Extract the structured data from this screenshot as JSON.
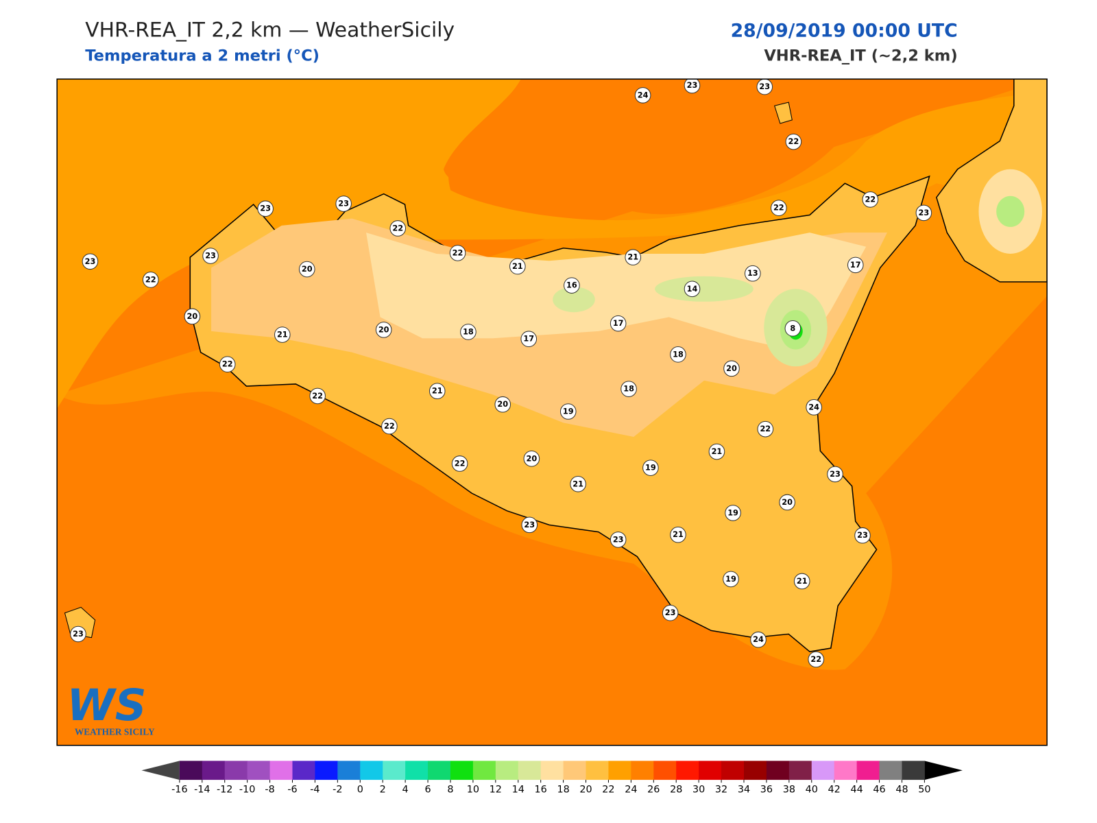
{
  "header": {
    "title": "VHR-REA_IT 2,2 km — WeatherSicily",
    "subtitle": "Temperatura a 2 metri (°C)",
    "date": "28/09/2019 00:00 UTC",
    "model": "VHR-REA_IT (~2,2 km)"
  },
  "map": {
    "stations": [
      24,
      23,
      23,
      22,
      23,
      23,
      22,
      22,
      21,
      21,
      22,
      22,
      23,
      23,
      23,
      20,
      22,
      16,
      14,
      13,
      17,
      20,
      21,
      20,
      18,
      17,
      17,
      8,
      18,
      20,
      22,
      22,
      21,
      20,
      19,
      18,
      24,
      22,
      22,
      21,
      22,
      20,
      19,
      21,
      23,
      20,
      19,
      23,
      23,
      21,
      23,
      19,
      21,
      23,
      24,
      22,
      23
    ]
  },
  "logo": {
    "letters": "WS",
    "text": "WEATHER SICILY"
  },
  "colorbar": {
    "ticks": [
      -16,
      -14,
      -12,
      -10,
      -8,
      -6,
      -4,
      -2,
      0,
      2,
      4,
      6,
      8,
      10,
      12,
      14,
      16,
      18,
      20,
      22,
      24,
      26,
      28,
      30,
      32,
      34,
      36,
      38,
      40,
      42,
      44,
      46,
      48,
      50
    ],
    "colors": [
      "#4a0a5a",
      "#6a1a8a",
      "#8a3aaa",
      "#a050c0",
      "#e070e8",
      "#5a28c8",
      "#0a1aff",
      "#1a7fd8",
      "#12c8e8",
      "#5aeacc",
      "#10e0a8",
      "#10d870",
      "#10e010",
      "#70e840",
      "#b8ec80",
      "#d8e898",
      "#ffe0a0",
      "#ffc878",
      "#ffc040",
      "#ffa000",
      "#ff8000",
      "#ff5000",
      "#ff1800",
      "#e00000",
      "#c00000",
      "#980000",
      "#700020",
      "#802048",
      "#d898f8",
      "#ff78c8",
      "#f01e90",
      "#808080",
      "#3a3a3a"
    ],
    "under_color": "#444444",
    "over_color": "#000000"
  }
}
